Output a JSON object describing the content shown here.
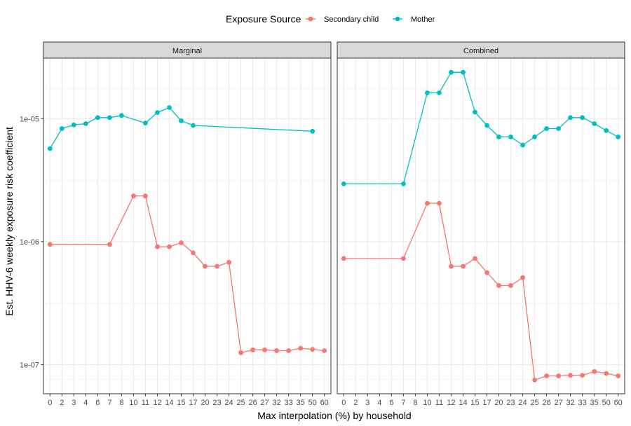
{
  "chart_data": {
    "type": "line",
    "xlabel": "Max interpolation (%) by household",
    "ylabel": "Est. HHV-6 weekly exposure risk coefficient",
    "y_scale": "log10",
    "ylim": [
      5.8e-08,
      3.1e-05
    ],
    "y_ticks": [
      {
        "value": 1e-07,
        "label": "1e-07"
      },
      {
        "value": 1e-06,
        "label": "1e-06"
      },
      {
        "value": 1e-05,
        "label": "1e-05"
      }
    ],
    "categories": [
      "0",
      "2",
      "3",
      "4",
      "6",
      "7",
      "8",
      "10",
      "11",
      "12",
      "14",
      "15",
      "17",
      "20",
      "23",
      "24",
      "25",
      "26",
      "27",
      "32",
      "33",
      "35",
      "50",
      "60"
    ],
    "grid": true,
    "legend": {
      "title": "Exposure Source",
      "position": "top",
      "entries": [
        {
          "label": "Secondary child",
          "color": "#F8766D"
        },
        {
          "label": "Mother",
          "color": "#00BFC4"
        }
      ]
    },
    "panels": [
      {
        "title": "Marginal",
        "series": [
          {
            "name": "Secondary child",
            "color": "#F8766D",
            "x": [
              "0",
              "7",
              "10",
              "11",
              "12",
              "14",
              "15",
              "17",
              "20",
              "23",
              "24",
              "25",
              "26",
              "27",
              "32",
              "33",
              "35",
              "50",
              "60"
            ],
            "y": [
              9.5e-07,
              9.5e-07,
              2.35e-06,
              2.35e-06,
              9.1e-07,
              9.1e-07,
              9.8e-07,
              8.1e-07,
              6.3e-07,
              6.3e-07,
              6.8e-07,
              1.25e-07,
              1.32e-07,
              1.32e-07,
              1.3e-07,
              1.3e-07,
              1.36e-07,
              1.33e-07,
              1.3e-07
            ]
          },
          {
            "name": "Mother",
            "color": "#00BFC4",
            "x": [
              "0",
              "2",
              "3",
              "4",
              "6",
              "7",
              "8",
              "11",
              "12",
              "14",
              "15",
              "17",
              "50"
            ],
            "y": [
              5.7e-06,
              8.3e-06,
              8.9e-06,
              9.1e-06,
              1.02e-05,
              1.02e-05,
              1.06e-05,
              9.2e-06,
              1.12e-05,
              1.23e-05,
              9.6e-06,
              8.8e-06,
              7.9e-06
            ]
          }
        ]
      },
      {
        "title": "Combined",
        "series": [
          {
            "name": "Secondary child",
            "color": "#F8766D",
            "x": [
              "0",
              "7",
              "10",
              "11",
              "12",
              "14",
              "15",
              "17",
              "20",
              "23",
              "24",
              "25",
              "26",
              "27",
              "32",
              "33",
              "35",
              "50",
              "60"
            ],
            "y": [
              7.3e-07,
              7.3e-07,
              2.05e-06,
              2.05e-06,
              6.3e-07,
              6.3e-07,
              7.3e-07,
              5.6e-07,
              4.4e-07,
              4.4e-07,
              5.1e-07,
              7.5e-08,
              8.1e-08,
              8.1e-08,
              8.2e-08,
              8.2e-08,
              8.8e-08,
              8.5e-08,
              8.1e-08
            ]
          },
          {
            "name": "Mother",
            "color": "#00BFC4",
            "x": [
              "0",
              "7",
              "10",
              "11",
              "12",
              "14",
              "15",
              "17",
              "20",
              "23",
              "24",
              "25",
              "26",
              "27",
              "32",
              "33",
              "35",
              "50",
              "60"
            ],
            "y": [
              2.95e-06,
              2.95e-06,
              1.62e-05,
              1.62e-05,
              2.38e-05,
              2.38e-05,
              1.13e-05,
              8.8e-06,
              7.1e-06,
              7.1e-06,
              6.1e-06,
              7.1e-06,
              8.3e-06,
              8.3e-06,
              1.02e-05,
              1.02e-05,
              9.1e-06,
              8e-06,
              7.1e-06
            ]
          }
        ]
      }
    ]
  }
}
